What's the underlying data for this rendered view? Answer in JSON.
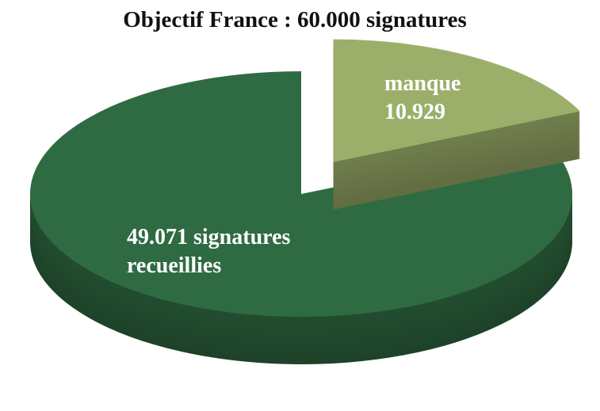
{
  "chart_data": {
    "type": "pie3d",
    "title": "Objectif France : 60.000 signatures",
    "categories": [
      "signatures recueillies",
      "manque"
    ],
    "values": [
      49071,
      10929
    ],
    "value_labels": [
      "49.071",
      "10.929"
    ],
    "colors": [
      "#2f6b42",
      "#9caf6a"
    ]
  }
}
